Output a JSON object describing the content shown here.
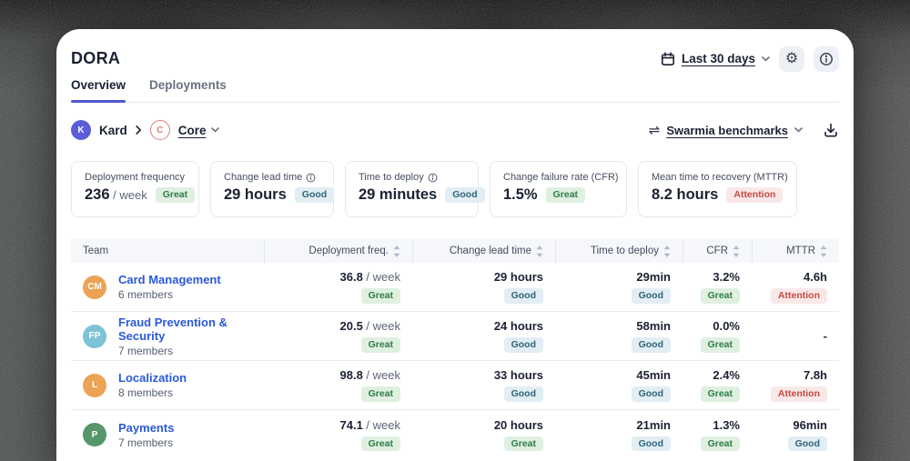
{
  "app": {
    "title": "DORA"
  },
  "header": {
    "date_range": "Last 30 days",
    "tabs": [
      {
        "label": "Overview",
        "active": true
      },
      {
        "label": "Deployments",
        "active": false
      }
    ]
  },
  "breadcrumb": {
    "org": {
      "initial": "K",
      "name": "Kard"
    },
    "team": {
      "initial": "C",
      "name": "Core"
    }
  },
  "toolbar": {
    "benchmarks_label": "Swarmia benchmarks"
  },
  "cards": [
    {
      "label": "Deployment frequency",
      "value": "236",
      "suffix": " / week",
      "badge": "Great",
      "badge_type": "great"
    },
    {
      "label": "Change lead time",
      "value": "29 hours",
      "suffix": "",
      "badge": "Good",
      "badge_type": "good"
    },
    {
      "label": "Time to deploy",
      "value": "29 minutes",
      "suffix": "",
      "badge": "Good",
      "badge_type": "good"
    },
    {
      "label": "Change failure rate (CFR)",
      "value": "1.5%",
      "suffix": "",
      "badge": "Great",
      "badge_type": "great"
    },
    {
      "label": "Mean time to recovery (MTTR)",
      "value": "8.2 hours",
      "suffix": "",
      "badge": "Attention",
      "badge_type": "attention"
    }
  ],
  "table": {
    "columns": [
      "Team",
      "Deployment freq.",
      "Change lead time",
      "Time to deploy",
      "CFR",
      "MTTR"
    ],
    "rows": [
      {
        "initials": "CM",
        "avatar_color": "#eca355",
        "name": "Card Management",
        "members": "6 members",
        "cells": [
          {
            "value": "36.8",
            "suffix": " / week",
            "badge": "Great",
            "badge_type": "great"
          },
          {
            "value": "29 hours",
            "suffix": "",
            "badge": "Good",
            "badge_type": "good"
          },
          {
            "value": "29min",
            "suffix": "",
            "badge": "Good",
            "badge_type": "good"
          },
          {
            "value": "3.2%",
            "suffix": "",
            "badge": "Great",
            "badge_type": "great"
          },
          {
            "value": "4.6h",
            "suffix": "",
            "badge": "Attention",
            "badge_type": "attention"
          }
        ]
      },
      {
        "initials": "FP",
        "avatar_color": "#7ec2d7",
        "name": "Fraud Prevention & Security",
        "members": "7 members",
        "cells": [
          {
            "value": "20.5",
            "suffix": " / week",
            "badge": "Great",
            "badge_type": "great"
          },
          {
            "value": "24 hours",
            "suffix": "",
            "badge": "Good",
            "badge_type": "good"
          },
          {
            "value": "58min",
            "suffix": "",
            "badge": "Good",
            "badge_type": "good"
          },
          {
            "value": "0.0%",
            "suffix": "",
            "badge": "Great",
            "badge_type": "great"
          },
          {
            "value": "-",
            "suffix": "",
            "badge": null,
            "badge_type": null
          }
        ]
      },
      {
        "initials": "L",
        "avatar_color": "#eca355",
        "name": "Localization",
        "members": "8 members",
        "cells": [
          {
            "value": "98.8",
            "suffix": " / week",
            "badge": "Great",
            "badge_type": "great"
          },
          {
            "value": "33 hours",
            "suffix": "",
            "badge": "Good",
            "badge_type": "good"
          },
          {
            "value": "45min",
            "suffix": "",
            "badge": "Good",
            "badge_type": "good"
          },
          {
            "value": "2.4%",
            "suffix": "",
            "badge": "Great",
            "badge_type": "great"
          },
          {
            "value": "7.8h",
            "suffix": "",
            "badge": "Attention",
            "badge_type": "attention"
          }
        ]
      },
      {
        "initials": "P",
        "avatar_color": "#55966a",
        "name": "Payments",
        "members": "7 members",
        "cells": [
          {
            "value": "74.1",
            "suffix": " / week",
            "badge": "Great",
            "badge_type": "great"
          },
          {
            "value": "20 hours",
            "suffix": "",
            "badge": "Great",
            "badge_type": "great"
          },
          {
            "value": "21min",
            "suffix": "",
            "badge": "Good",
            "badge_type": "good"
          },
          {
            "value": "1.3%",
            "suffix": "",
            "badge": "Great",
            "badge_type": "great"
          },
          {
            "value": "96min",
            "suffix": "",
            "badge": "Good",
            "badge_type": "good"
          }
        ]
      }
    ]
  },
  "icons": {
    "date_range": "calendar-icon",
    "settings": "gear-icon",
    "info": "info-icon",
    "benchmarks": "compare-arrows-icon",
    "export": "download-icon",
    "sort": "sort-arrows-icon"
  },
  "colors": {
    "accent": "#5156ce",
    "link": "#2b59d8",
    "badge_great_bg": "#dff0e1",
    "badge_great_text": "#2f7c45",
    "badge_good_bg": "#e2edf4",
    "badge_good_text": "#2e6577",
    "badge_attention_bg": "#fae8e8",
    "badge_attention_text": "#c44a44",
    "table_header_bg": "#f5f7fa"
  }
}
